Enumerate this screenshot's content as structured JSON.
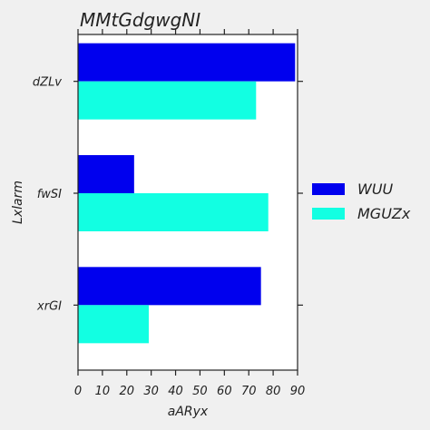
{
  "chart_data": {
    "type": "bar",
    "orientation": "horizontal",
    "title": "MMtGdgwgNI",
    "xlabel": "aARyx",
    "ylabel": "Lxlarm",
    "categories": [
      "dZLv",
      "fwSI",
      "xrGI"
    ],
    "series": [
      {
        "name": "WUU",
        "values": [
          89,
          23,
          75
        ],
        "color": "#0000ee"
      },
      {
        "name": "MGUZx",
        "values": [
          73,
          78,
          29
        ],
        "color": "#12ffe2"
      }
    ],
    "xlim": [
      0,
      90
    ],
    "xticks": [
      0,
      10,
      20,
      30,
      40,
      50,
      60,
      70,
      80,
      90
    ],
    "grid": false,
    "legend_position": "right"
  }
}
